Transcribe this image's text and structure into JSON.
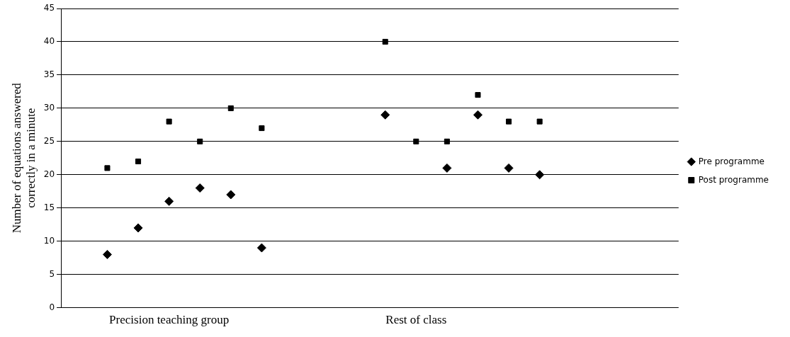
{
  "chart_data": {
    "type": "scatter",
    "ylabel": "Number of equations answered correctly in a minute",
    "categories": [
      null,
      null,
      null,
      "Precision teaching group",
      null,
      null,
      null,
      null,
      null,
      null,
      null,
      "Rest of class",
      null,
      null,
      null,
      null,
      null,
      null,
      null,
      null
    ],
    "ylim": [
      0,
      45
    ],
    "yticks": [
      0,
      5,
      10,
      15,
      20,
      25,
      30,
      35,
      40,
      45
    ],
    "grid": "y",
    "legend": "right",
    "series": [
      {
        "name": "Pre programme",
        "color": "#000000",
        "marker": "diamond",
        "values": [
          null,
          8,
          12,
          16,
          18,
          17,
          9,
          null,
          null,
          null,
          29,
          null,
          21,
          29,
          21,
          20,
          null,
          null,
          null,
          null
        ]
      },
      {
        "name": "Post programme",
        "color": "#000000",
        "marker": "square",
        "values": [
          null,
          21,
          22,
          28,
          25,
          30,
          27,
          null,
          null,
          null,
          40,
          25,
          25,
          32,
          28,
          28,
          null,
          null,
          null,
          null
        ]
      }
    ]
  }
}
